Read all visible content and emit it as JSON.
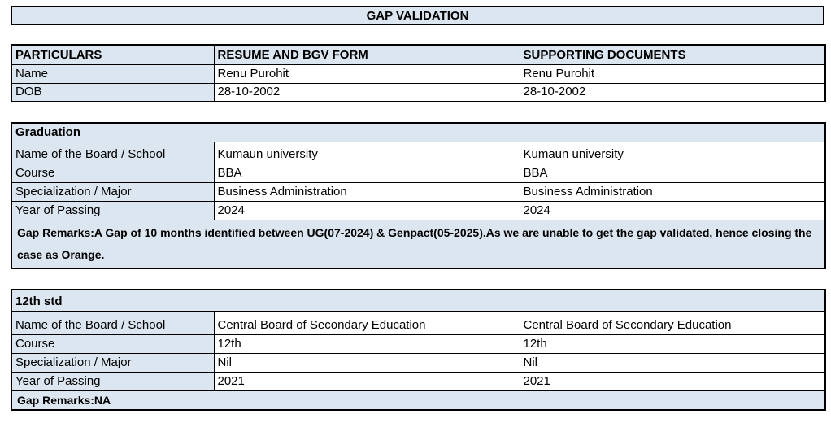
{
  "title": "GAP VALIDATION",
  "colors": {
    "fill": "#dce6f1",
    "border": "#000000"
  },
  "particulars": {
    "headers": [
      "PARTICULARS",
      "RESUME AND BGV FORM",
      "SUPPORTING DOCUMENTS"
    ],
    "rows": [
      {
        "label": "Name",
        "resume": "Renu Purohit",
        "supporting": "Renu Purohit"
      },
      {
        "label": "DOB",
        "resume": "28-10-2002",
        "supporting": "28-10-2002"
      }
    ]
  },
  "sections": [
    {
      "title": "Graduation",
      "rows": [
        {
          "label": "Name of the Board / School",
          "resume": "Kumaun university",
          "supporting": "Kumaun university"
        },
        {
          "label": "Course",
          "resume": "BBA",
          "supporting": "BBA"
        },
        {
          "label": "Specialization / Major",
          "resume": "Business Administration",
          "supporting": "Business Administration"
        },
        {
          "label": "Year of Passing",
          "resume": "2024",
          "supporting": "2024"
        }
      ],
      "gap_remarks": "Gap Remarks:A Gap of 10 months identified between UG(07-2024) & Genpact(05-2025).As we are unable to get the gap validated, hence closing the case as Orange."
    },
    {
      "title": "12th std",
      "rows": [
        {
          "label": "Name of the Board / School",
          "resume": "Central Board of Secondary Education",
          "supporting": "Central Board of Secondary Education"
        },
        {
          "label": "Course",
          "resume": "12th",
          "supporting": "12th"
        },
        {
          "label": "Specialization / Major",
          "resume": "Nil",
          "supporting": "Nil"
        },
        {
          "label": "Year of Passing",
          "resume": "2021",
          "supporting": "2021"
        }
      ],
      "gap_remarks": "Gap Remarks:NA"
    }
  ]
}
